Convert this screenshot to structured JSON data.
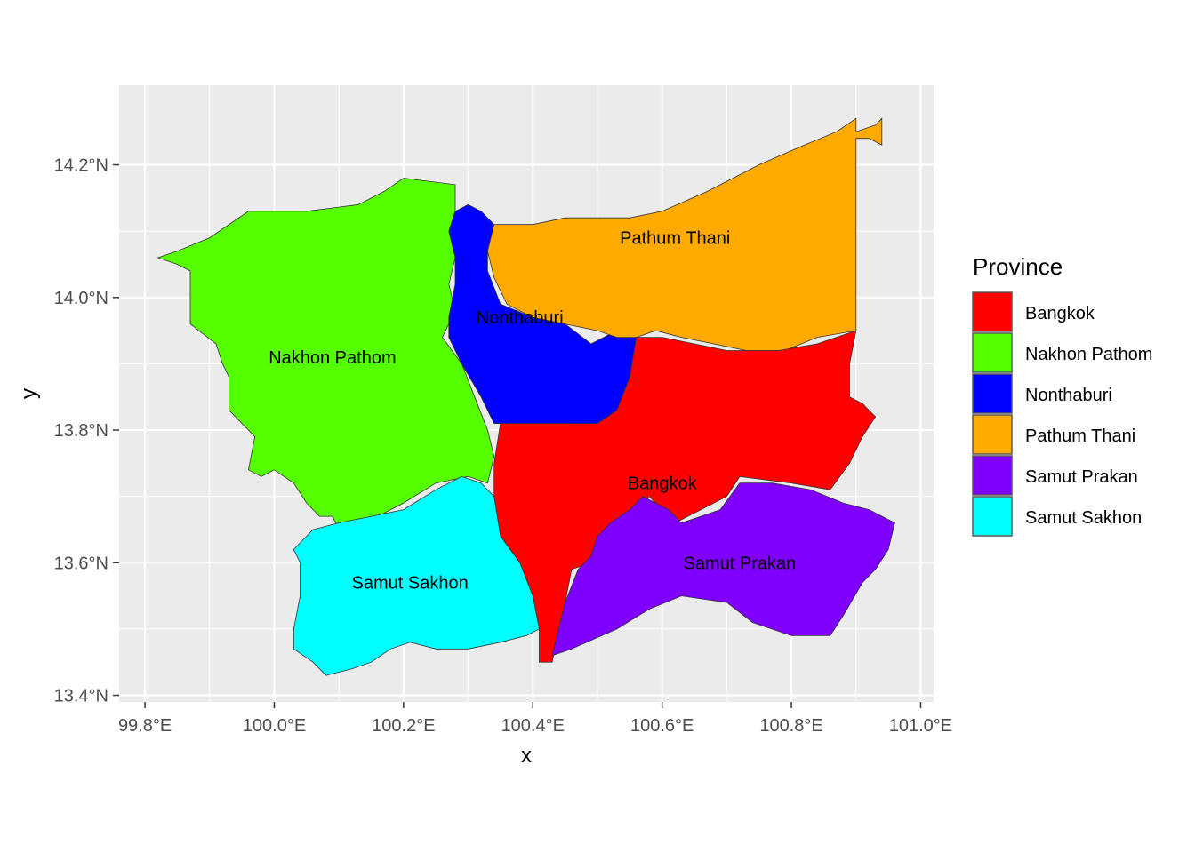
{
  "chart_data": {
    "type": "map",
    "xlabel": "x",
    "ylabel": "y",
    "x_ticks": [
      "99.8°E",
      "100.0°E",
      "100.2°E",
      "100.4°E",
      "100.6°E",
      "100.8°E",
      "101.0°E"
    ],
    "y_ticks": [
      "13.4°N",
      "13.6°N",
      "13.8°N",
      "14.0°N",
      "14.2°N"
    ],
    "xlim": [
      99.76,
      101.02
    ],
    "ylim": [
      13.39,
      14.32
    ],
    "grid": true,
    "legend": {
      "title": "Province",
      "placement": "right",
      "items": [
        {
          "name": "Bangkok",
          "color": "#ff0000"
        },
        {
          "name": "Nakhon Pathom",
          "color": "#55ff00"
        },
        {
          "name": "Nonthaburi",
          "color": "#0000ff"
        },
        {
          "name": "Pathum Thani",
          "color": "#ffaa00"
        },
        {
          "name": "Samut Prakan",
          "color": "#8000ff"
        },
        {
          "name": "Samut Sakhon",
          "color": "#00ffff"
        }
      ]
    },
    "regions": [
      {
        "name": "Nakhon Pathom",
        "color": "#55ff00",
        "label": "Nakhon Pathom",
        "label_pos": [
          100.09,
          13.91
        ],
        "polygon": [
          [
            100.28,
            14.17
          ],
          [
            100.2,
            14.18
          ],
          [
            100.17,
            14.16
          ],
          [
            100.13,
            14.14
          ],
          [
            100.05,
            14.13
          ],
          [
            100.0,
            14.13
          ],
          [
            99.96,
            14.13
          ],
          [
            99.9,
            14.09
          ],
          [
            99.85,
            14.07
          ],
          [
            99.82,
            14.06
          ],
          [
            99.85,
            14.05
          ],
          [
            99.87,
            14.04
          ],
          [
            99.87,
            14.0
          ],
          [
            99.87,
            13.96
          ],
          [
            99.91,
            13.93
          ],
          [
            99.92,
            13.9
          ],
          [
            99.93,
            13.88
          ],
          [
            99.93,
            13.83
          ],
          [
            99.97,
            13.79
          ],
          [
            99.96,
            13.74
          ],
          [
            99.98,
            13.73
          ],
          [
            100.0,
            13.74
          ],
          [
            100.03,
            13.72
          ],
          [
            100.05,
            13.69
          ],
          [
            100.07,
            13.67
          ],
          [
            100.09,
            13.67
          ],
          [
            100.1,
            13.65
          ],
          [
            100.13,
            13.65
          ],
          [
            100.16,
            13.67
          ],
          [
            100.2,
            13.69
          ],
          [
            100.25,
            13.72
          ],
          [
            100.3,
            13.73
          ],
          [
            100.33,
            13.72
          ],
          [
            100.34,
            13.76
          ],
          [
            100.33,
            13.8
          ],
          [
            100.31,
            13.85
          ],
          [
            100.29,
            13.9
          ],
          [
            100.26,
            13.94
          ],
          [
            100.28,
            13.98
          ],
          [
            100.27,
            14.02
          ],
          [
            100.28,
            14.06
          ],
          [
            100.28,
            14.1
          ],
          [
            100.28,
            14.17
          ]
        ]
      },
      {
        "name": "Nonthaburi",
        "color": "#0000ff",
        "label": "Nonthaburi",
        "label_pos": [
          100.38,
          13.97
        ],
        "polygon": [
          [
            100.28,
            14.13
          ],
          [
            100.3,
            14.14
          ],
          [
            100.32,
            14.13
          ],
          [
            100.34,
            14.11
          ],
          [
            100.33,
            14.07
          ],
          [
            100.33,
            14.04
          ],
          [
            100.35,
            13.99
          ],
          [
            100.4,
            13.97
          ],
          [
            100.45,
            13.96
          ],
          [
            100.49,
            13.93
          ],
          [
            100.53,
            13.95
          ],
          [
            100.56,
            13.94
          ],
          [
            100.55,
            13.88
          ],
          [
            100.53,
            13.83
          ],
          [
            100.49,
            13.8
          ],
          [
            100.46,
            13.81
          ],
          [
            100.42,
            13.81
          ],
          [
            100.34,
            13.81
          ],
          [
            100.32,
            13.85
          ],
          [
            100.29,
            13.9
          ],
          [
            100.27,
            13.94
          ],
          [
            100.27,
            13.97
          ],
          [
            100.28,
            14.02
          ],
          [
            100.28,
            14.06
          ],
          [
            100.27,
            14.1
          ],
          [
            100.28,
            14.13
          ]
        ]
      },
      {
        "name": "Pathum Thani",
        "color": "#ffaa00",
        "label": "Pathum Thani",
        "label_pos": [
          100.62,
          14.09
        ],
        "polygon": [
          [
            100.34,
            14.11
          ],
          [
            100.4,
            14.11
          ],
          [
            100.45,
            14.12
          ],
          [
            100.5,
            14.12
          ],
          [
            100.55,
            14.12
          ],
          [
            100.6,
            14.13
          ],
          [
            100.67,
            14.16
          ],
          [
            100.75,
            14.2
          ],
          [
            100.82,
            14.23
          ],
          [
            100.87,
            14.25
          ],
          [
            100.9,
            14.27
          ],
          [
            100.9,
            14.25
          ],
          [
            100.93,
            14.26
          ],
          [
            100.94,
            14.27
          ],
          [
            100.94,
            14.23
          ],
          [
            100.92,
            14.24
          ],
          [
            100.9,
            14.24
          ],
          [
            100.9,
            14.15
          ],
          [
            100.9,
            14.05
          ],
          [
            100.9,
            13.95
          ],
          [
            100.84,
            13.94
          ],
          [
            100.79,
            13.92
          ],
          [
            100.73,
            13.92
          ],
          [
            100.68,
            13.93
          ],
          [
            100.63,
            13.94
          ],
          [
            100.59,
            13.95
          ],
          [
            100.56,
            13.94
          ],
          [
            100.53,
            13.94
          ],
          [
            100.5,
            13.95
          ],
          [
            100.45,
            13.96
          ],
          [
            100.4,
            13.97
          ],
          [
            100.36,
            13.99
          ],
          [
            100.34,
            14.03
          ],
          [
            100.33,
            14.07
          ],
          [
            100.34,
            14.11
          ]
        ]
      },
      {
        "name": "Bangkok",
        "color": "#ff0000",
        "label": "Bangkok",
        "label_pos": [
          100.6,
          13.72
        ],
        "polygon": [
          [
            100.56,
            13.94
          ],
          [
            100.6,
            13.94
          ],
          [
            100.65,
            13.93
          ],
          [
            100.7,
            13.92
          ],
          [
            100.78,
            13.92
          ],
          [
            100.84,
            13.93
          ],
          [
            100.9,
            13.95
          ],
          [
            100.89,
            13.9
          ],
          [
            100.89,
            13.85
          ],
          [
            100.91,
            13.84
          ],
          [
            100.93,
            13.82
          ],
          [
            100.91,
            13.79
          ],
          [
            100.89,
            13.75
          ],
          [
            100.86,
            13.71
          ],
          [
            100.8,
            13.72
          ],
          [
            100.72,
            13.73
          ],
          [
            100.7,
            13.7
          ],
          [
            100.66,
            13.68
          ],
          [
            100.62,
            13.66
          ],
          [
            100.58,
            13.7
          ],
          [
            100.55,
            13.68
          ],
          [
            100.52,
            13.63
          ],
          [
            100.49,
            13.6
          ],
          [
            100.46,
            13.59
          ],
          [
            100.45,
            13.54
          ],
          [
            100.44,
            13.5
          ],
          [
            100.43,
            13.45
          ],
          [
            100.41,
            13.45
          ],
          [
            100.41,
            13.5
          ],
          [
            100.4,
            13.55
          ],
          [
            100.38,
            13.6
          ],
          [
            100.35,
            13.64
          ],
          [
            100.34,
            13.7
          ],
          [
            100.34,
            13.75
          ],
          [
            100.35,
            13.81
          ],
          [
            100.4,
            13.81
          ],
          [
            100.45,
            13.81
          ],
          [
            100.5,
            13.81
          ],
          [
            100.53,
            13.83
          ],
          [
            100.55,
            13.88
          ],
          [
            100.56,
            13.94
          ]
        ]
      },
      {
        "name": "Samut Prakan",
        "color": "#8000ff",
        "label": "Samut Prakan",
        "label_pos": [
          100.72,
          13.6
        ],
        "polygon": [
          [
            100.49,
            13.61
          ],
          [
            100.5,
            13.64
          ],
          [
            100.52,
            13.66
          ],
          [
            100.55,
            13.68
          ],
          [
            100.57,
            13.7
          ],
          [
            100.59,
            13.69
          ],
          [
            100.61,
            13.68
          ],
          [
            100.63,
            13.66
          ],
          [
            100.66,
            13.67
          ],
          [
            100.69,
            13.68
          ],
          [
            100.72,
            13.72
          ],
          [
            100.77,
            13.72
          ],
          [
            100.83,
            13.71
          ],
          [
            100.88,
            13.69
          ],
          [
            100.92,
            13.68
          ],
          [
            100.96,
            13.66
          ],
          [
            100.95,
            13.62
          ],
          [
            100.93,
            13.59
          ],
          [
            100.91,
            13.57
          ],
          [
            100.88,
            13.52
          ],
          [
            100.86,
            13.49
          ],
          [
            100.8,
            13.49
          ],
          [
            100.74,
            13.51
          ],
          [
            100.7,
            13.54
          ],
          [
            100.63,
            13.55
          ],
          [
            100.58,
            13.53
          ],
          [
            100.53,
            13.5
          ],
          [
            100.46,
            13.47
          ],
          [
            100.43,
            13.46
          ],
          [
            100.44,
            13.5
          ],
          [
            100.45,
            13.54
          ],
          [
            100.47,
            13.59
          ],
          [
            100.49,
            13.61
          ]
        ]
      },
      {
        "name": "Samut Sakhon",
        "color": "#00ffff",
        "label": "Samut Sakhon",
        "label_pos": [
          100.21,
          13.57
        ],
        "polygon": [
          [
            100.06,
            13.65
          ],
          [
            100.1,
            13.66
          ],
          [
            100.15,
            13.67
          ],
          [
            100.2,
            13.68
          ],
          [
            100.25,
            13.71
          ],
          [
            100.29,
            13.73
          ],
          [
            100.32,
            13.72
          ],
          [
            100.34,
            13.7
          ],
          [
            100.35,
            13.64
          ],
          [
            100.38,
            13.6
          ],
          [
            100.4,
            13.55
          ],
          [
            100.41,
            13.5
          ],
          [
            100.39,
            13.49
          ],
          [
            100.35,
            13.48
          ],
          [
            100.3,
            13.47
          ],
          [
            100.25,
            13.47
          ],
          [
            100.21,
            13.48
          ],
          [
            100.18,
            13.47
          ],
          [
            100.15,
            13.45
          ],
          [
            100.12,
            13.44
          ],
          [
            100.08,
            13.43
          ],
          [
            100.06,
            13.45
          ],
          [
            100.03,
            13.47
          ],
          [
            100.03,
            13.5
          ],
          [
            100.04,
            13.55
          ],
          [
            100.04,
            13.6
          ],
          [
            100.03,
            13.62
          ],
          [
            100.06,
            13.65
          ]
        ]
      }
    ]
  }
}
